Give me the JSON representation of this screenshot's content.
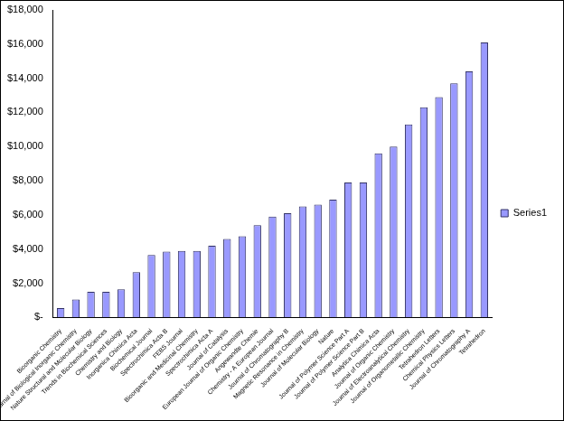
{
  "chart_data": {
    "type": "bar",
    "categories": [
      "Bioorganic Chemistry",
      "Journal of Biological Inorganic Chemistry",
      "Nature Structural and Molecular Biology",
      "Trends in Biochemical Sciences",
      "Chemistry and Biology",
      "Inorganica Chimica Acta",
      "Biochemical Journal",
      "Spectrochimica Acta B",
      "FEBS Journal",
      "Bioorganic and Medicinal Chemistry",
      "Spectrochimica Acta A",
      "Journal of Catalysis",
      "European Journal of Organic Chemistry",
      "Angewandte Chemie",
      "Chemistry - A European Journal",
      "Journal of Chromatography B",
      "Magnetic Resonance in Chemistry",
      "Journal of Molecular Biology",
      "Nature",
      "Journal of Polymer Science Part A",
      "Journal of Polymer Science Part B",
      "Analytica Chimica Acta",
      "Journal of Organic Chemistry",
      "Journal of Electroanalytical Chemistry",
      "Journal of Organometallic Chemistry",
      "Tetrahedron Letters",
      "Chemical Physics Letters",
      "Journal of Chromatography A",
      "Tetrahedron"
    ],
    "series": [
      {
        "name": "Series1",
        "color": "#9999ff",
        "values": [
          550,
          1050,
          1500,
          1500,
          1650,
          2650,
          3650,
          3850,
          3900,
          3900,
          4200,
          4600,
          4750,
          5400,
          5900,
          6100,
          6500,
          6600,
          6900,
          7900,
          7900,
          9600,
          10000,
          11300,
          12300,
          12900,
          13700,
          14400,
          16100
        ]
      }
    ],
    "ylim": [
      0,
      18000
    ],
    "yticks": [
      {
        "value": 0,
        "label": "$-"
      },
      {
        "value": 2000,
        "label": "$2,000"
      },
      {
        "value": 4000,
        "label": "$4,000"
      },
      {
        "value": 6000,
        "label": "$6,000"
      },
      {
        "value": 8000,
        "label": "$8,000"
      },
      {
        "value": 10000,
        "label": "$10,000"
      },
      {
        "value": 12000,
        "label": "$12,000"
      },
      {
        "value": 14000,
        "label": "$14,000"
      },
      {
        "value": 16000,
        "label": "$16,000"
      },
      {
        "value": 18000,
        "label": "$18,000"
      }
    ],
    "grid": false,
    "legend": "right"
  }
}
